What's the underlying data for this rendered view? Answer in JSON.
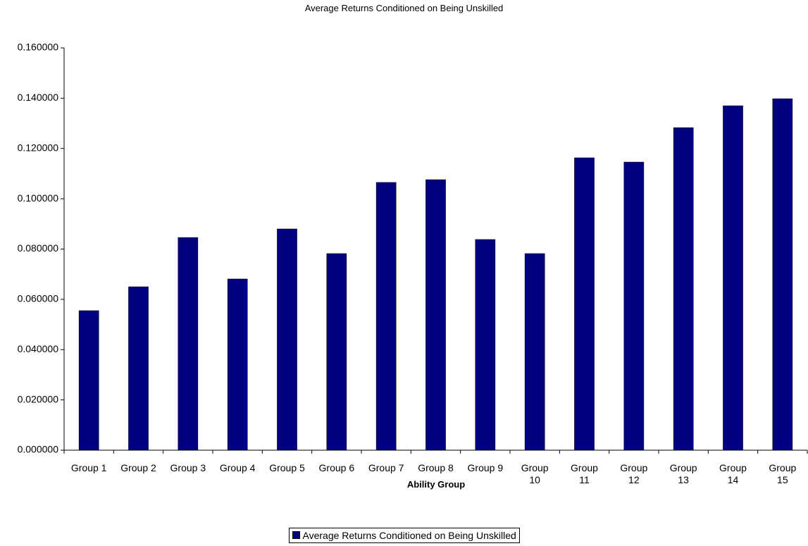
{
  "chart_data": {
    "type": "bar",
    "title": "Average Returns Conditioned on Being Unskilled",
    "x_label": "Ability Group",
    "categories": [
      "Group 1",
      "Group 2",
      "Group 3",
      "Group 4",
      "Group 5",
      "Group 6",
      "Group 7",
      "Group 8",
      "Group 9",
      "Group 10",
      "Group 11",
      "Group 12",
      "Group 13",
      "Group 14",
      "Group 15"
    ],
    "series": [
      {
        "name": "Average Returns Conditioned on Being Unskilled",
        "color": "#000080",
        "values": [
          0.0555,
          0.065,
          0.0846,
          0.0681,
          0.088,
          0.0782,
          0.1065,
          0.1076,
          0.0838,
          0.0782,
          0.1163,
          0.1146,
          0.1283,
          0.137,
          0.1398
        ]
      }
    ],
    "ylim": [
      0,
      0.16
    ],
    "yticks": [
      {
        "value": 0,
        "label": "0.000000"
      },
      {
        "value": 0.02,
        "label": "0.020000"
      },
      {
        "value": 0.04,
        "label": "0.040000"
      },
      {
        "value": 0.06,
        "label": "0.060000"
      },
      {
        "value": 0.08,
        "label": "0.080000"
      },
      {
        "value": 0.1,
        "label": "0.100000"
      },
      {
        "value": 0.12,
        "label": "0.120000"
      },
      {
        "value": 0.14,
        "label": "0.140000"
      },
      {
        "value": 0.16,
        "label": "0.160000"
      }
    ],
    "grid": false,
    "legend": "bottom"
  }
}
